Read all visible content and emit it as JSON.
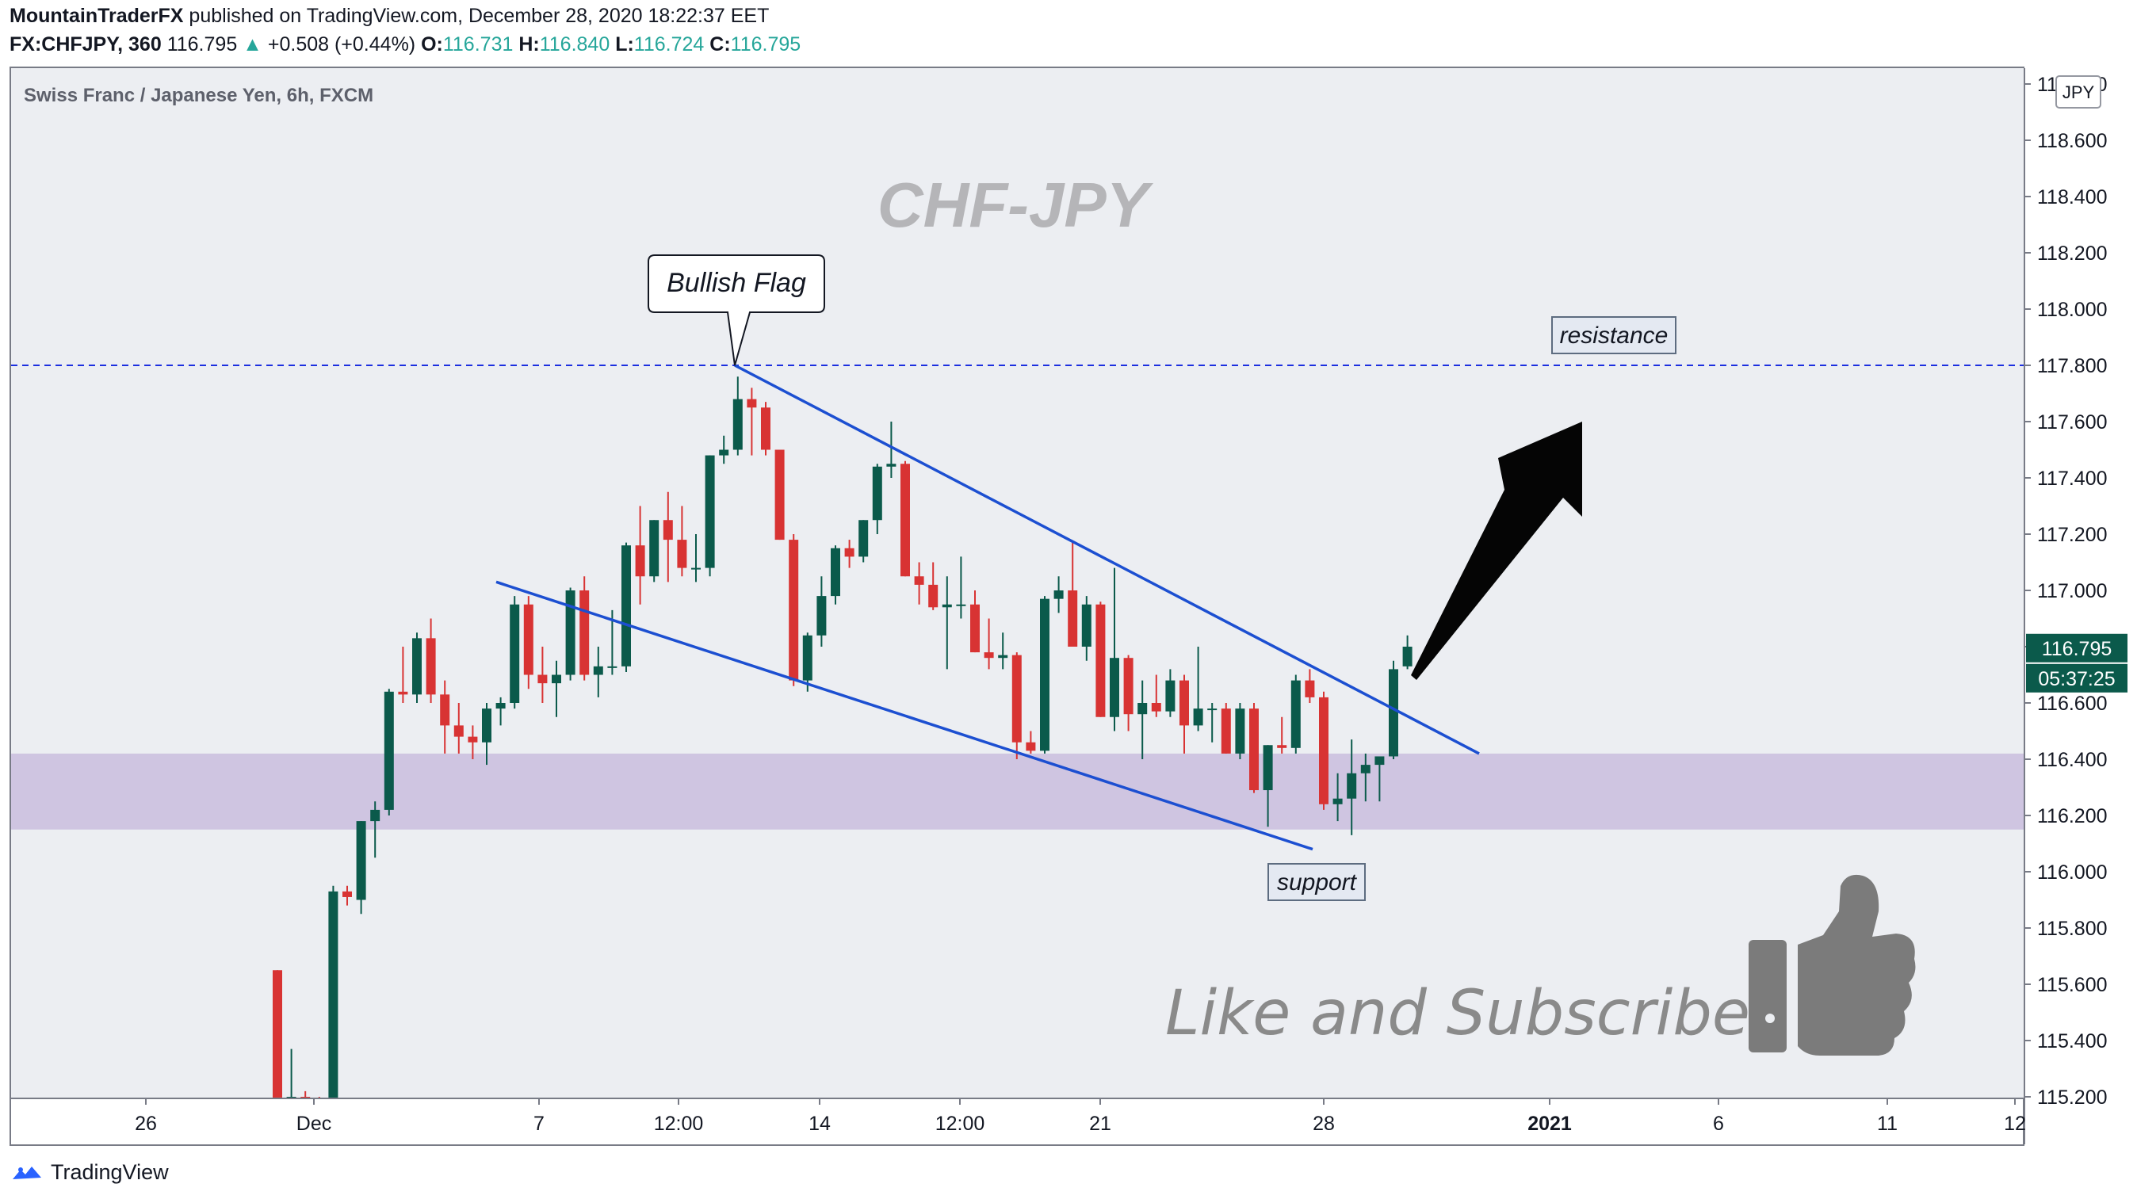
{
  "header": {
    "author": "MountainTraderFX",
    "published_text": "published on TradingView.com, December 28, 2020 18:22:37 EET",
    "symbol": "FX:CHFJPY, 360",
    "last": "116.795",
    "change_arrow": "▲",
    "change": "+0.508 (+0.44%)",
    "o_label": "O:",
    "o_value": "116.731",
    "h_label": "H:",
    "h_value": "116.840",
    "l_label": "L:",
    "l_value": "116.724",
    "c_label": "C:",
    "c_value": "116.795"
  },
  "chart_data": {
    "type": "candlestick",
    "title": "Swiss Franc / Japanese Yen, 6h, FXCM",
    "watermark": "CHF-JPY",
    "currency_label": "JPY",
    "y_ticks": [
      "115.200",
      "115.400",
      "115.600",
      "115.800",
      "116.000",
      "116.200",
      "116.400",
      "116.600",
      "116.800",
      "117.000",
      "117.200",
      "117.400",
      "117.600",
      "117.800",
      "118.000",
      "118.200",
      "118.400",
      "118.600",
      "118.800"
    ],
    "x_ticks": [
      {
        "label": "26",
        "bold": false
      },
      {
        "label": "Dec",
        "bold": false
      },
      {
        "label": "7",
        "bold": false
      },
      {
        "label": "12:00",
        "bold": false
      },
      {
        "label": "14",
        "bold": false
      },
      {
        "label": "12:00",
        "bold": false
      },
      {
        "label": "21",
        "bold": false
      },
      {
        "label": "28",
        "bold": false
      },
      {
        "label": "2021",
        "bold": true
      },
      {
        "label": "6",
        "bold": false
      },
      {
        "label": "11",
        "bold": false
      },
      {
        "label": "12",
        "bold": false
      }
    ],
    "last_price_label": "116.795",
    "countdown_label": "05:37:25",
    "resistance_level": 117.8,
    "support_zone": [
      116.15,
      116.42
    ],
    "candles": [
      [
        115.65,
        115.65,
        114.9,
        114.9
      ],
      [
        115.1,
        115.37,
        114.9,
        115.2
      ],
      [
        115.2,
        115.22,
        115.1,
        115.18
      ],
      [
        115.18,
        115.2,
        115.1,
        115.1
      ],
      [
        115.1,
        115.95,
        115.05,
        115.93
      ],
      [
        115.93,
        115.95,
        115.88,
        115.91
      ],
      [
        115.9,
        116.18,
        115.85,
        116.18
      ],
      [
        116.18,
        116.25,
        116.05,
        116.22
      ],
      [
        116.22,
        116.65,
        116.2,
        116.64
      ],
      [
        116.64,
        116.8,
        116.6,
        116.63
      ],
      [
        116.63,
        116.85,
        116.6,
        116.83
      ],
      [
        116.83,
        116.9,
        116.6,
        116.63
      ],
      [
        116.63,
        116.68,
        116.42,
        116.52
      ],
      [
        116.52,
        116.6,
        116.42,
        116.48
      ],
      [
        116.48,
        116.52,
        116.4,
        116.46
      ],
      [
        116.46,
        116.6,
        116.38,
        116.58
      ],
      [
        116.58,
        116.62,
        116.52,
        116.6
      ],
      [
        116.6,
        116.98,
        116.58,
        116.95
      ],
      [
        116.95,
        116.98,
        116.65,
        116.7
      ],
      [
        116.7,
        116.8,
        116.6,
        116.67
      ],
      [
        116.67,
        116.75,
        116.55,
        116.7
      ],
      [
        116.7,
        117.01,
        116.68,
        117.0
      ],
      [
        117.0,
        117.05,
        116.68,
        116.7
      ],
      [
        116.7,
        116.8,
        116.62,
        116.73
      ],
      [
        116.73,
        116.93,
        116.7,
        116.73
      ],
      [
        116.73,
        117.17,
        116.71,
        117.16
      ],
      [
        117.16,
        117.3,
        116.95,
        117.05
      ],
      [
        117.05,
        117.25,
        117.03,
        117.25
      ],
      [
        117.25,
        117.35,
        117.03,
        117.18
      ],
      [
        117.18,
        117.3,
        117.05,
        117.08
      ],
      [
        117.08,
        117.2,
        117.03,
        117.08
      ],
      [
        117.08,
        117.48,
        117.05,
        117.48
      ],
      [
        117.48,
        117.55,
        117.45,
        117.5
      ],
      [
        117.5,
        117.76,
        117.48,
        117.68
      ],
      [
        117.68,
        117.72,
        117.48,
        117.65
      ],
      [
        117.65,
        117.67,
        117.48,
        117.5
      ],
      [
        117.5,
        117.5,
        117.18,
        117.18
      ],
      [
        117.18,
        117.2,
        116.66,
        116.68
      ],
      [
        116.68,
        116.85,
        116.64,
        116.84
      ],
      [
        116.84,
        117.05,
        116.8,
        116.98
      ],
      [
        116.98,
        117.16,
        116.95,
        117.15
      ],
      [
        117.15,
        117.18,
        117.08,
        117.12
      ],
      [
        117.12,
        117.25,
        117.1,
        117.25
      ],
      [
        117.25,
        117.45,
        117.2,
        117.44
      ],
      [
        117.44,
        117.6,
        117.4,
        117.45
      ],
      [
        117.45,
        117.46,
        117.05,
        117.05
      ],
      [
        117.05,
        117.1,
        116.95,
        117.02
      ],
      [
        117.02,
        117.1,
        116.93,
        116.94
      ],
      [
        116.94,
        117.05,
        116.72,
        116.95
      ],
      [
        116.95,
        117.12,
        116.9,
        116.95
      ],
      [
        116.95,
        117.0,
        116.78,
        116.78
      ],
      [
        116.78,
        116.9,
        116.72,
        116.76
      ],
      [
        116.76,
        116.85,
        116.72,
        116.77
      ],
      [
        116.77,
        116.78,
        116.4,
        116.46
      ],
      [
        116.46,
        116.5,
        116.42,
        116.43
      ],
      [
        116.43,
        116.98,
        116.42,
        116.97
      ],
      [
        116.97,
        117.05,
        116.92,
        117.0
      ],
      [
        117.0,
        117.17,
        116.8,
        116.8
      ],
      [
        116.8,
        116.98,
        116.75,
        116.95
      ],
      [
        116.95,
        116.96,
        116.55,
        116.55
      ],
      [
        116.55,
        117.08,
        116.5,
        116.76
      ],
      [
        116.76,
        116.77,
        116.5,
        116.56
      ],
      [
        116.56,
        116.68,
        116.4,
        116.6
      ],
      [
        116.6,
        116.7,
        116.55,
        116.57
      ],
      [
        116.57,
        116.72,
        116.55,
        116.68
      ],
      [
        116.68,
        116.7,
        116.42,
        116.52
      ],
      [
        116.52,
        116.8,
        116.5,
        116.58
      ],
      [
        116.58,
        116.6,
        116.46,
        116.58
      ],
      [
        116.58,
        116.6,
        116.42,
        116.42
      ],
      [
        116.42,
        116.6,
        116.4,
        116.58
      ],
      [
        116.58,
        116.6,
        116.28,
        116.29
      ],
      [
        116.29,
        116.45,
        116.16,
        116.45
      ],
      [
        116.45,
        116.55,
        116.42,
        116.44
      ],
      [
        116.44,
        116.7,
        116.42,
        116.68
      ],
      [
        116.68,
        116.72,
        116.6,
        116.62
      ],
      [
        116.62,
        116.64,
        116.22,
        116.24
      ],
      [
        116.24,
        116.35,
        116.18,
        116.26
      ],
      [
        116.26,
        116.47,
        116.13,
        116.35
      ],
      [
        116.35,
        116.42,
        116.25,
        116.38
      ],
      [
        116.38,
        116.4,
        116.25,
        116.41
      ],
      [
        116.41,
        116.75,
        116.4,
        116.72
      ],
      [
        116.73,
        116.84,
        116.72,
        116.8
      ]
    ],
    "x_range_bars": [
      -35,
      225
    ],
    "y_range": [
      115.2,
      118.85
    ]
  },
  "annotations": {
    "bullish_flag": "Bullish Flag",
    "resistance": "resistance",
    "support": "support",
    "like_subscribe": "Like and Subscribe!"
  },
  "colors": {
    "up": "#0b5a4b",
    "down": "#d83333",
    "flag_line": "#1c4fd1",
    "resistance_line": "#1c2fe0",
    "support_zone": "#cfc5e1",
    "last_price_tag": "#0b5a4b",
    "background": "#eceef2"
  },
  "footer": {
    "brand": "TradingView"
  }
}
